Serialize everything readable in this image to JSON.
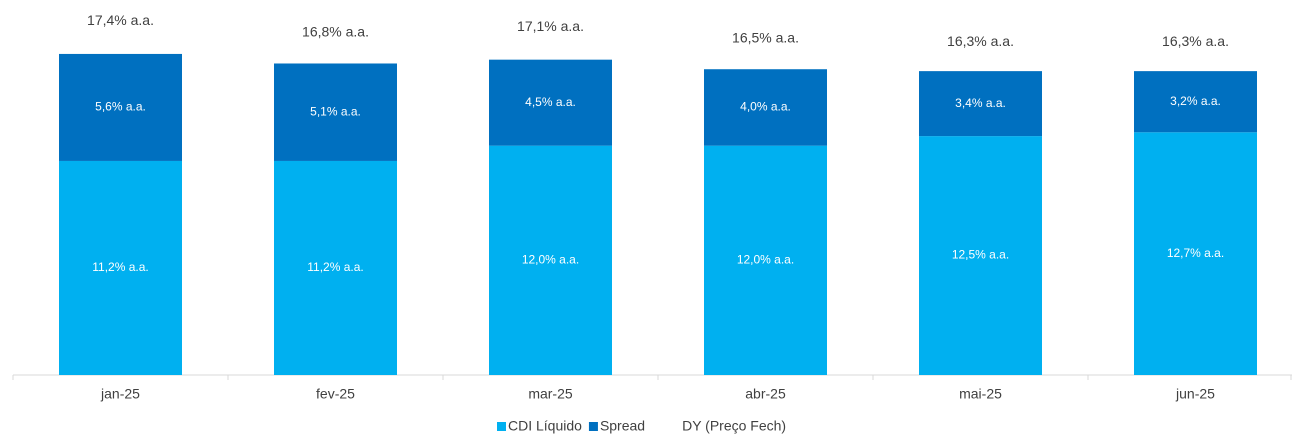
{
  "chart_data": {
    "type": "stacked-bar",
    "categories": [
      "jan-25",
      "fev-25",
      "mar-25",
      "abr-25",
      "mai-25",
      "jun-25"
    ],
    "series": [
      {
        "name": "CDI Líquido",
        "color": "#00b0f0",
        "values": [
          11.2,
          11.2,
          12.0,
          12.0,
          12.5,
          12.7
        ],
        "value_labels": [
          "11,2% a.a.",
          "11,2% a.a.",
          "12,0% a.a.",
          "12,0% a.a.",
          "12,5% a.a.",
          "12,7% a.a."
        ]
      },
      {
        "name": "Spread",
        "color": "#0070c0",
        "values": [
          5.6,
          5.1,
          4.5,
          4.0,
          3.4,
          3.2
        ],
        "value_labels": [
          "5,6% a.a.",
          "5,1% a.a.",
          "4,5% a.a.",
          "4,0% a.a.",
          "3,4% a.a.",
          "3,2% a.a."
        ]
      },
      {
        "name": "DY (Preço Fech)",
        "kind": "total-label",
        "values": [
          17.4,
          16.8,
          17.1,
          16.5,
          16.3,
          16.3
        ],
        "value_labels": [
          "17,4% a.a.",
          "16,8% a.a.",
          "17,1% a.a.",
          "16,5% a.a.",
          "16,3% a.a.",
          "16,3% a.a."
        ]
      }
    ],
    "ylim": [
      0,
      18
    ]
  }
}
